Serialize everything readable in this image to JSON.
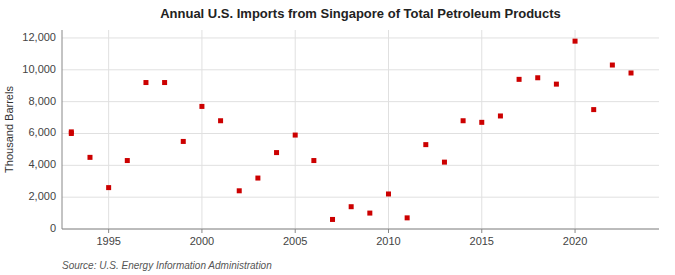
{
  "chart_data": {
    "type": "scatter",
    "title": "Annual U.S. Imports from Singapore of Total Petroleum Products",
    "ylabel": "Thousand Barrels",
    "source": "Source: U.S. Energy Information Administration",
    "color": "#cc0000",
    "marker": "square",
    "grid": true,
    "xlim": [
      1992.5,
      2024.5
    ],
    "ylim": [
      0,
      12500
    ],
    "xticks": [
      1995,
      2000,
      2005,
      2010,
      2015,
      2020
    ],
    "yticks": [
      0,
      {
        "value": 2000,
        "label": "2,000"
      },
      {
        "value": 4000,
        "label": "4,000"
      },
      {
        "value": 6000,
        "label": "6,000"
      },
      {
        "value": 8000,
        "label": "8,000"
      },
      {
        "value": 10000,
        "label": "10,000"
      },
      {
        "value": 12000,
        "label": "12,000"
      }
    ],
    "x": [
      1993,
      1993,
      1994,
      1995,
      1996,
      1997,
      1998,
      1999,
      2000,
      2001,
      2002,
      2003,
      2004,
      2005,
      2006,
      2007,
      2008,
      2009,
      2010,
      2011,
      2012,
      2013,
      2014,
      2015,
      2016,
      2017,
      2018,
      2019,
      2020,
      2021,
      2022,
      2023
    ],
    "values": [
      6000,
      6100,
      4500,
      2600,
      4300,
      9200,
      9200,
      5500,
      7700,
      6800,
      2400,
      3200,
      4800,
      5900,
      4300,
      600,
      1400,
      1000,
      2200,
      700,
      5300,
      4200,
      6800,
      6700,
      7100,
      9400,
      9500,
      9100,
      11800,
      7500,
      10300,
      9800
    ]
  }
}
